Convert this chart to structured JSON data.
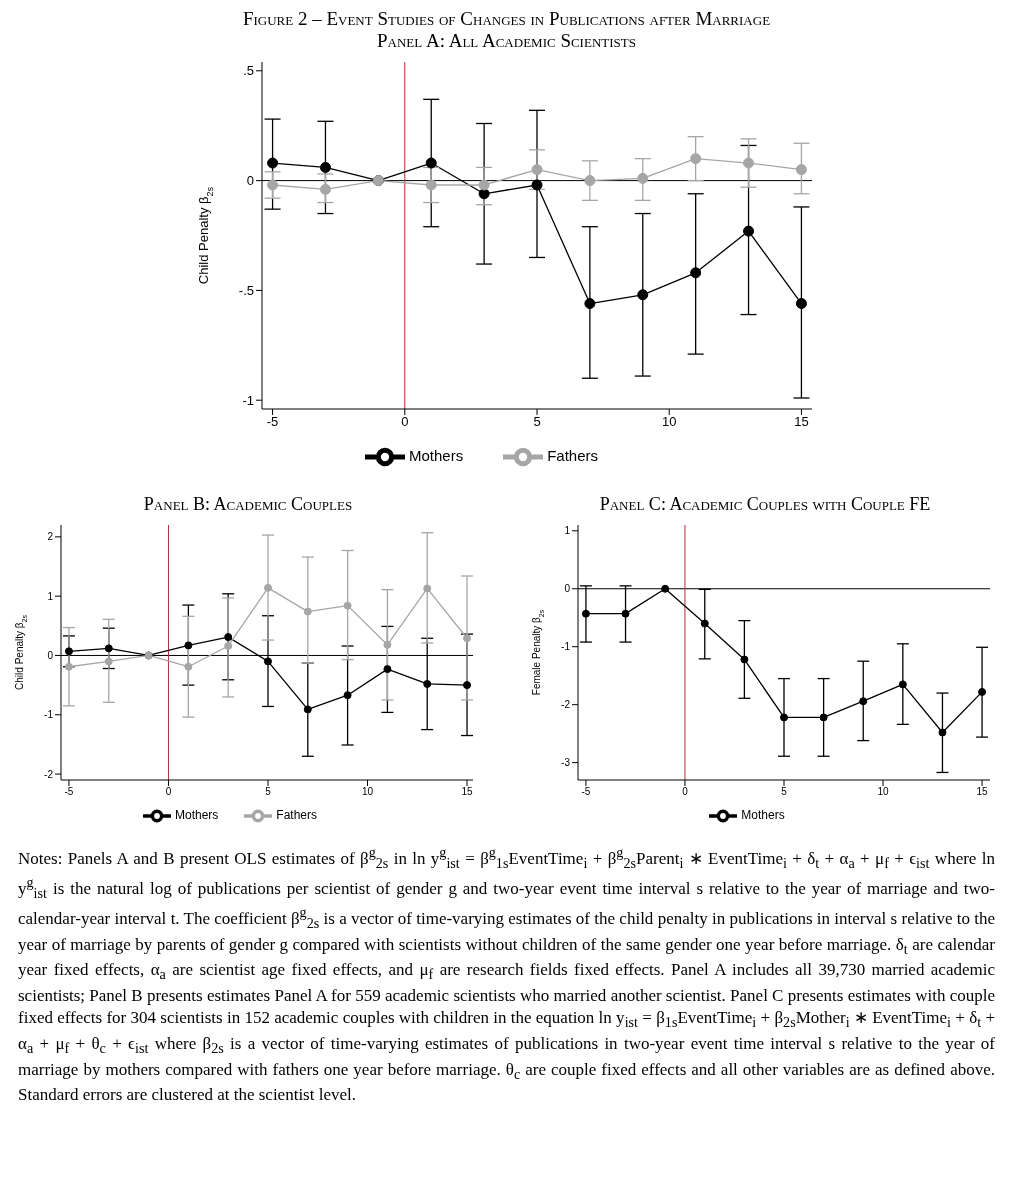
{
  "chart_data": [
    {
      "type": "line",
      "title": "Figure 2 – Event Studies of Changes in Publications after Marriage",
      "subtitle": "Panel A: All Academic Scientists",
      "ylabel": "Child Penalty β$_{2s}$",
      "x": [
        -5,
        -3,
        -1,
        1,
        3,
        5,
        7,
        9,
        11,
        13,
        15
      ],
      "series": [
        {
          "name": "Mothers",
          "color": "#000000",
          "values": [
            0.08,
            0.06,
            0,
            0.08,
            -0.06,
            -0.02,
            -0.56,
            -0.52,
            -0.42,
            -0.23,
            -0.56
          ],
          "errors": [
            [
              -0.13,
              0.28
            ],
            [
              -0.15,
              0.27
            ],
            null,
            [
              -0.21,
              0.37
            ],
            [
              -0.38,
              0.26
            ],
            [
              -0.35,
              0.32
            ],
            [
              -0.9,
              -0.21
            ],
            [
              -0.89,
              -0.15
            ],
            [
              -0.79,
              -0.06
            ],
            [
              -0.61,
              0.16
            ],
            [
              -0.99,
              -0.12
            ]
          ]
        },
        {
          "name": "Fathers",
          "color": "#a6a6a6",
          "values": [
            -0.02,
            -0.04,
            0,
            -0.02,
            -0.02,
            0.05,
            0,
            0.01,
            0.1,
            0.08,
            0.05
          ],
          "errors": [
            [
              -0.08,
              0.04
            ],
            [
              -0.1,
              0.03
            ],
            null,
            [
              -0.1,
              0.06
            ],
            [
              -0.11,
              0.06
            ],
            [
              -0.04,
              0.14
            ],
            [
              -0.09,
              0.09
            ],
            [
              -0.09,
              0.1
            ],
            [
              0,
              0.2
            ],
            [
              -0.03,
              0.19
            ],
            [
              -0.06,
              0.17
            ]
          ]
        }
      ],
      "xlim": [
        -5.4,
        15.4
      ],
      "xticks": [
        -5,
        0,
        5,
        10,
        15
      ],
      "ylim": [
        -1.04,
        0.54
      ],
      "yticks": [
        {
          "value": -1,
          "label": "-1"
        },
        {
          "value": -0.5,
          "label": "-.5"
        },
        0,
        {
          "value": 0.5,
          "label": ".5"
        }
      ],
      "ref_lines": [
        {
          "axis": "y",
          "value": 0,
          "color": "#000000"
        },
        {
          "axis": "x",
          "value": 0,
          "color": "#b0303a"
        }
      ],
      "marker": "circle",
      "line_style": "solid",
      "grid": false,
      "legend": "bottom",
      "annotations": [
        "Notes: Panels A and B present OLS estimates of β$^{g}$$_{2s}$ in ln y$^{g}$$_{ist}$ = β$^{g}$$_{1s}$EventTime$_{i}$ + β$^{g}$$_{2s}$Parent$_{i}$ ∗ EventTime$_{i}$ + δ$_{t}$ + α$_{a}$ + μ$_{f}$ + ϵ$_{ist}$ where ln y$^{g}$$_{ist}$ is the natural log of publications per scientist of gender g and two-year event time interval s relative to the year of marriage and two-calendar-year interval t. The coefficient β$^{g}$$_{2s}$ is a vector of time-varying estimates of the child penalty in publications in interval s relative to the year of marriage by parents of gender g compared with scientists without children of the same gender one year before marriage. δ$_{t}$ are calendar year fixed effects, α$_{a}$ are scientist age fixed effects, and μ$_{f}$ are research fields fixed effects. Panel A includes all 39,730 married academic scientists; Panel B presents estimates Panel A for 559 academic scientists who married another scientist. Panel C presents estimates with couple fixed effects for 304 scientists in 152 academic couples with children in the equation ln y$_{ist}$ = β$_{1s}$EventTime$_{i}$ + β$_{2s}$Mother$_{i}$ ∗ EventTime$_{i}$ + δ$_{t}$ + α$_{a}$ + μ$_{f}$ + θ$_{c}$ + ϵ$_{ist}$ where β$_{2s}$ is a vector of time-varying estimates of publications in two-year event time interval s relative to the year of marriage by mothers compared with fathers one year before marriage. θ$_{c}$ are couple fixed effects and all other variables are as defined above. Standard errors are clustered at the scientist level."
      ]
    },
    {
      "type": "line",
      "title": "Panel B: Academic Couples",
      "ylabel": "Child Penalty β$_{2s}$",
      "x": [
        -5,
        -3,
        -1,
        1,
        3,
        5,
        7,
        9,
        11,
        13,
        15
      ],
      "series": [
        {
          "name": "Mothers",
          "color": "#000000",
          "values": [
            0.07,
            0.12,
            0,
            0.17,
            0.31,
            -0.1,
            -0.91,
            -0.67,
            -0.23,
            -0.48,
            -0.5
          ],
          "errors": [
            [
              -0.19,
              0.33
            ],
            [
              -0.22,
              0.46
            ],
            null,
            [
              -0.5,
              0.85
            ],
            [
              -0.41,
              1.04
            ],
            [
              -0.86,
              0.67
            ],
            [
              -1.7,
              -0.13
            ],
            [
              -1.51,
              0.16
            ],
            [
              -0.96,
              0.49
            ],
            [
              -1.25,
              0.29
            ],
            [
              -1.35,
              0.36
            ]
          ]
        },
        {
          "name": "Fathers",
          "color": "#a6a6a6",
          "values": [
            -0.19,
            -0.1,
            0,
            -0.19,
            0.16,
            1.14,
            0.74,
            0.84,
            0.18,
            1.13,
            0.29
          ],
          "errors": [
            [
              -0.85,
              0.47
            ],
            [
              -0.79,
              0.61
            ],
            null,
            [
              -1.04,
              0.66
            ],
            [
              -0.7,
              0.97
            ],
            [
              0.26,
              2.03
            ],
            [
              -0.13,
              1.66
            ],
            [
              -0.07,
              1.77
            ],
            [
              -0.75,
              1.11
            ],
            [
              0.21,
              2.07
            ],
            [
              -0.75,
              1.34
            ]
          ]
        }
      ],
      "xlim": [
        -5.4,
        15.3
      ],
      "xticks": [
        -5,
        0,
        5,
        10,
        15
      ],
      "ylim": [
        -2.1,
        2.2
      ],
      "yticks": [
        -2,
        -1,
        0,
        1,
        2
      ],
      "ref_lines": [
        {
          "axis": "y",
          "value": 0,
          "color": "#000000"
        },
        {
          "axis": "x",
          "value": 0,
          "color": "#b0303a"
        }
      ],
      "marker": "circle",
      "line_style": "solid",
      "grid": false,
      "legend": "bottom"
    },
    {
      "type": "line",
      "title": "Panel C: Academic Couples with Couple FE",
      "ylabel": "Female Penalty β$_{2s}$",
      "x": [
        -5,
        -3,
        -1,
        1,
        3,
        5,
        7,
        9,
        11,
        13,
        15
      ],
      "series": [
        {
          "name": "Mothers",
          "color": "#000000",
          "values": [
            -0.43,
            -0.43,
            0,
            -0.6,
            -1.22,
            -2.22,
            -2.22,
            -1.94,
            -1.65,
            -2.48,
            -1.78
          ],
          "errors": [
            [
              -0.92,
              0.05
            ],
            [
              -0.92,
              0.05
            ],
            null,
            [
              -1.21,
              -0.01
            ],
            [
              -1.89,
              -0.55
            ],
            [
              -2.89,
              -1.55
            ],
            [
              -2.89,
              -1.55
            ],
            [
              -2.62,
              -1.25
            ],
            [
              -2.34,
              -0.95
            ],
            [
              -3.17,
              -1.8
            ],
            [
              -2.56,
              -1.01
            ]
          ]
        }
      ],
      "xlim": [
        -5.4,
        15.4
      ],
      "xticks": [
        -5,
        0,
        5,
        10,
        15
      ],
      "ylim": [
        -3.3,
        1.1
      ],
      "yticks": [
        -3,
        -2,
        -1,
        0,
        1
      ],
      "ref_lines": [
        {
          "axis": "y",
          "value": 0,
          "color": "#000000"
        },
        {
          "axis": "x",
          "value": 0,
          "color": "#b0303a"
        }
      ],
      "marker": "circle",
      "line_style": "solid",
      "grid": false,
      "legend": "bottom"
    }
  ]
}
